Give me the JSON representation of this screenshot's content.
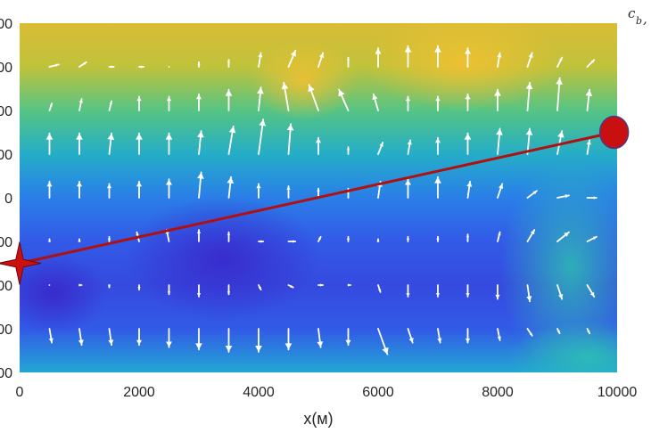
{
  "chart_data": {
    "type": "heatmap",
    "title": "",
    "xlabel": "x(м)",
    "ylabel": "",
    "xlim": [
      0,
      10000
    ],
    "ylim": [
      -4000,
      4000
    ],
    "x_ticks": [
      "0",
      "2000",
      "4000",
      "6000",
      "8000",
      "10000"
    ],
    "y_ticks_visible": [
      "00",
      "00",
      "00",
      "00",
      "0",
      "00",
      "00",
      "00",
      "00"
    ],
    "colorbar_label": "c",
    "colorbar_label_sub": "b",
    "colorbar_label_suffix": ",",
    "colormap": [
      "#3a2bd0",
      "#2f6cf0",
      "#20a4d8",
      "#33c3a0",
      "#a8c640",
      "#f2b830",
      "#f7e420"
    ],
    "field_color_stops": [
      {
        "y": 4000,
        "value": 0.78
      },
      {
        "y": 3000,
        "value": 0.72
      },
      {
        "y": 2000,
        "value": 0.55
      },
      {
        "y": 1000,
        "value": 0.38
      },
      {
        "y": 0,
        "value": 0.22
      },
      {
        "y": -1000,
        "value": 0.12
      },
      {
        "y": -2000,
        "value": 0.08
      },
      {
        "y": -3000,
        "value": 0.12
      },
      {
        "y": -4000,
        "value": 0.35
      }
    ],
    "arrow_color": "#ffffff",
    "quiver": {
      "x": [
        500,
        1000,
        1500,
        2000,
        2500,
        3000,
        3500,
        4000,
        4500,
        5000,
        5500,
        6000,
        6500,
        7000,
        7500,
        8000,
        8500,
        9000,
        9500
      ],
      "y": [
        3000,
        2000,
        1000,
        0,
        -1000,
        -2000,
        -3000
      ],
      "rows": [
        [
          [
            0.2,
            0.05
          ],
          [
            0.15,
            0.1
          ],
          [
            0.1,
            0
          ],
          [
            0.1,
            0
          ],
          [
            0,
            0
          ],
          [
            0,
            0.1
          ],
          [
            0,
            0.15
          ],
          [
            0.05,
            0.3
          ],
          [
            0.15,
            0.35
          ],
          [
            0.1,
            0.3
          ],
          [
            0,
            0.2
          ],
          [
            0,
            0.4
          ],
          [
            0,
            0.45
          ],
          [
            0,
            0.45
          ],
          [
            0,
            0.4
          ],
          [
            0.05,
            0.3
          ],
          [
            0.1,
            0.3
          ],
          [
            0.1,
            0.2
          ],
          [
            0.15,
            0.15
          ]
        ],
        [
          [
            0.05,
            0.15
          ],
          [
            0.05,
            0.25
          ],
          [
            0.05,
            0.2
          ],
          [
            0,
            0.3
          ],
          [
            0,
            0.3
          ],
          [
            0,
            0.35
          ],
          [
            0,
            0.45
          ],
          [
            0.05,
            0.5
          ],
          [
            -0.1,
            0.6
          ],
          [
            -0.2,
            0.55
          ],
          [
            -0.2,
            0.45
          ],
          [
            -0.1,
            0.35
          ],
          [
            0,
            0.3
          ],
          [
            0,
            0.3
          ],
          [
            0,
            0.35
          ],
          [
            0,
            0.45
          ],
          [
            0.05,
            0.6
          ],
          [
            0.05,
            0.7
          ],
          [
            0.05,
            0.45
          ]
        ],
        [
          [
            0,
            0.45
          ],
          [
            0,
            0.45
          ],
          [
            0.05,
            0.45
          ],
          [
            0,
            0.45
          ],
          [
            0,
            0.45
          ],
          [
            0.05,
            0.5
          ],
          [
            0.1,
            0.6
          ],
          [
            0.1,
            0.75
          ],
          [
            0.05,
            0.65
          ],
          [
            0,
            0.35
          ],
          [
            0,
            0.15
          ],
          [
            0.1,
            0.25
          ],
          [
            0.05,
            0.3
          ],
          [
            0,
            0.35
          ],
          [
            0,
            0.45
          ],
          [
            0.05,
            0.55
          ],
          [
            0.05,
            0.55
          ],
          [
            0.1,
            0.5
          ],
          [
            0.05,
            0.3
          ]
        ],
        [
          [
            0,
            0.35
          ],
          [
            0,
            0.35
          ],
          [
            0,
            0.3
          ],
          [
            0,
            0.35
          ],
          [
            0,
            0.4
          ],
          [
            0.05,
            0.55
          ],
          [
            0.05,
            0.45
          ],
          [
            0,
            0.3
          ],
          [
            0,
            0.25
          ],
          [
            0,
            0.2
          ],
          [
            0,
            0.2
          ],
          [
            0.05,
            0.35
          ],
          [
            0,
            0.4
          ],
          [
            0,
            0.45
          ],
          [
            0.05,
            0.35
          ],
          [
            0.1,
            0.3
          ],
          [
            0.2,
            0.15
          ],
          [
            0.25,
            0.05
          ],
          [
            0.2,
            0
          ]
        ],
        [
          [
            0,
            0.05
          ],
          [
            0,
            0.05
          ],
          [
            0,
            0.1
          ],
          [
            -0.05,
            0.2
          ],
          [
            -0.05,
            0.25
          ],
          [
            0,
            0.25
          ],
          [
            0,
            0.2
          ],
          [
            0.1,
            0
          ],
          [
            0.15,
            0
          ],
          [
            0.05,
            0.1
          ],
          [
            0,
            0.1
          ],
          [
            0,
            0.05
          ],
          [
            0,
            0.1
          ],
          [
            0,
            0.1
          ],
          [
            0,
            0.15
          ],
          [
            0.05,
            0.2
          ],
          [
            0.15,
            0.25
          ],
          [
            0.25,
            0.2
          ],
          [
            0.2,
            0.1
          ]
        ],
        [
          [
            0,
            0
          ],
          [
            0.05,
            0
          ],
          [
            0,
            -0.05
          ],
          [
            0,
            -0.1
          ],
          [
            0,
            -0.2
          ],
          [
            0,
            -0.25
          ],
          [
            0,
            -0.2
          ],
          [
            0.05,
            -0.1
          ],
          [
            0.1,
            -0.05
          ],
          [
            0.1,
            0
          ],
          [
            0.05,
            0
          ],
          [
            0.05,
            -0.15
          ],
          [
            0,
            -0.25
          ],
          [
            0,
            -0.25
          ],
          [
            0,
            -0.25
          ],
          [
            0,
            -0.3
          ],
          [
            0.05,
            -0.35
          ],
          [
            0.1,
            -0.3
          ],
          [
            0.15,
            -0.25
          ]
        ],
        [
          [
            0.05,
            -0.3
          ],
          [
            0.05,
            -0.35
          ],
          [
            0.05,
            -0.35
          ],
          [
            0,
            -0.35
          ],
          [
            0,
            -0.4
          ],
          [
            0,
            -0.45
          ],
          [
            0,
            -0.5
          ],
          [
            0,
            -0.5
          ],
          [
            0,
            -0.45
          ],
          [
            0.05,
            -0.4
          ],
          [
            0,
            -0.35
          ],
          [
            0.2,
            -0.55
          ],
          [
            0.1,
            -0.3
          ],
          [
            0.05,
            -0.3
          ],
          [
            0,
            -0.3
          ],
          [
            0.05,
            -0.25
          ],
          [
            0.1,
            -0.15
          ],
          [
            0.05,
            -0.1
          ],
          [
            0.05,
            -0.1
          ]
        ]
      ]
    },
    "line": {
      "color": "#b01010",
      "x": [
        0,
        9950
      ],
      "y": [
        -1500,
        1500
      ]
    },
    "source_marker": {
      "x": 0,
      "y": -1500,
      "color": "#cc1010",
      "shape": "star"
    },
    "receiver_marker": {
      "x": 9950,
      "y": 1500,
      "color": "#c81010",
      "shape": "circle"
    }
  }
}
